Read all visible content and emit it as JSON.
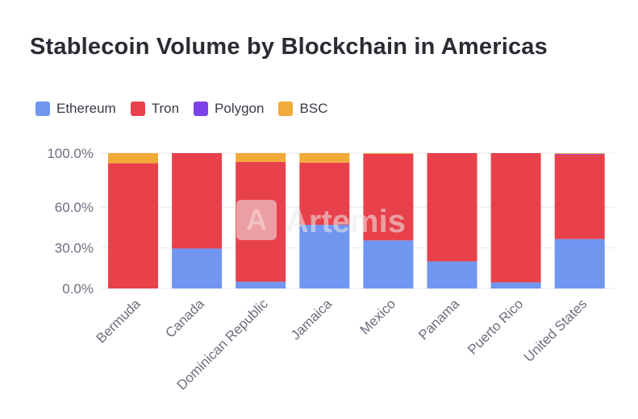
{
  "chart_data": {
    "type": "bar",
    "stacked": true,
    "title": "Stablecoin Volume by Blockchain in Americas",
    "categories": [
      "Bermuda",
      "Canada",
      "Dominican Republic",
      "Jamaica",
      "Mexico",
      "Panama",
      "Puerto Rico",
      "United States"
    ],
    "series": [
      {
        "name": "Ethereum",
        "color": "#7096f0",
        "values": [
          0.0,
          29.5,
          5.0,
          47.0,
          35.5,
          20.0,
          4.5,
          36.5
        ]
      },
      {
        "name": "Tron",
        "color": "#e8414b",
        "values": [
          92.5,
          70.5,
          88.5,
          46.0,
          64.0,
          80.0,
          95.5,
          62.5
        ]
      },
      {
        "name": "Polygon",
        "color": "#7b42e8",
        "values": [
          0.0,
          0.0,
          0.0,
          0.0,
          0.0,
          0.0,
          0.0,
          0.5
        ]
      },
      {
        "name": "BSC",
        "color": "#f2aa38",
        "values": [
          7.5,
          0.0,
          6.5,
          7.0,
          0.5,
          0.0,
          0.0,
          0.5
        ]
      }
    ],
    "y_ticks": [
      0,
      30,
      60,
      100
    ],
    "y_tick_labels": [
      "0.0%",
      "30.0%",
      "60.0%",
      "100.0%"
    ],
    "ylim": [
      0,
      100
    ],
    "xlabel": "",
    "ylabel": "",
    "legend_position": "top-left",
    "grid": true
  },
  "watermark": {
    "text": "Artemis"
  },
  "colors": {
    "grid": "#e6e8ee",
    "axis_text": "#6b6f7e",
    "title": "#2b2b33"
  }
}
